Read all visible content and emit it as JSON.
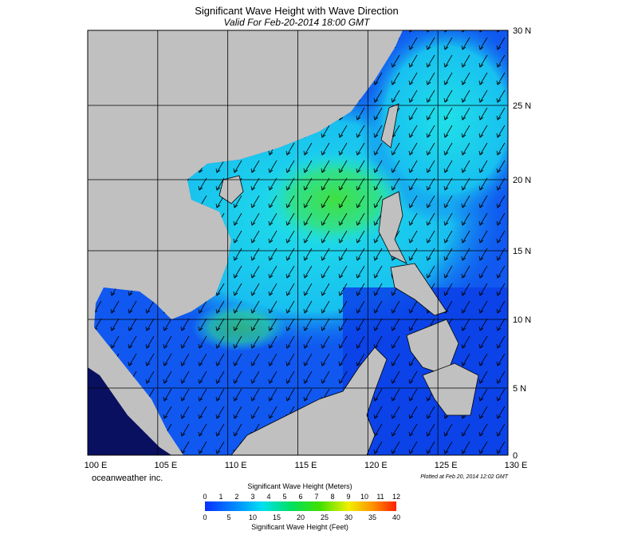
{
  "title": "Significant Wave Height with Wave Direction",
  "subtitle": "Valid For Feb-20-2014 18:00 GMT",
  "lat_labels": [
    "30 N",
    "25 N",
    "20 N",
    "15 N",
    "10 N",
    "5 N",
    "0"
  ],
  "lon_labels": [
    "100 E",
    "105 E",
    "110 E",
    "115 E",
    "120 E",
    "125 E",
    "130 E"
  ],
  "credit": "oceanweather inc.",
  "plotted": "Plotted at Feb 20, 2014 12:02 GMT",
  "colorbar": {
    "meters_title": "Significant Wave Height (Meters)",
    "meters_ticks": [
      "0",
      "1",
      "2",
      "3",
      "4",
      "5",
      "6",
      "7",
      "8",
      "9",
      "10",
      "11",
      "12"
    ],
    "feet_ticks": [
      "0",
      "5",
      "10",
      "15",
      "20",
      "25",
      "30",
      "35",
      "40"
    ],
    "feet_title": "Significant Wave Height (Feet)"
  }
}
